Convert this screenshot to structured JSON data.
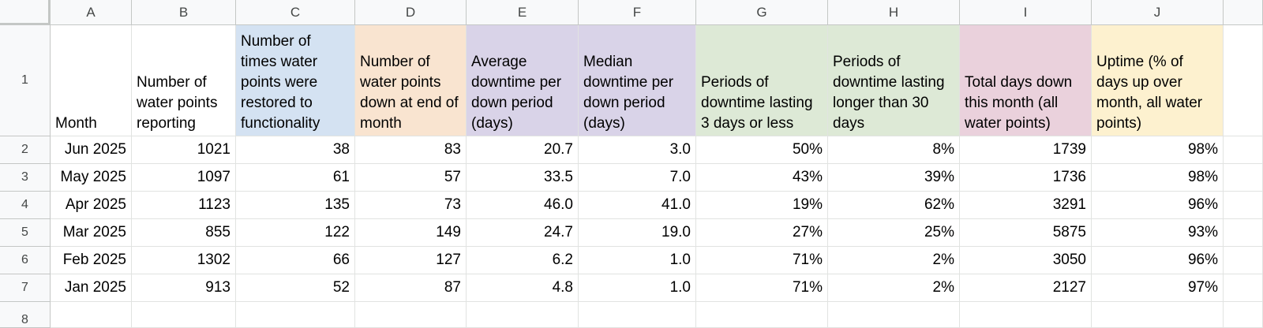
{
  "columns": [
    "A",
    "B",
    "C",
    "D",
    "E",
    "F",
    "G",
    "H",
    "I",
    "J"
  ],
  "header_row_number": "1",
  "headers": [
    "Month",
    "Number of water points reporting",
    "Number of times water points were restored to functionality",
    "Number of water points down at end of month",
    "Average downtime per down period (days)",
    "Median downtime per down period (days)",
    "Periods of downtime lasting 3 days or less",
    "Periods of downtime lasting longer than 30 days",
    "Total days down this month (all water points)",
    "Uptime (% of days up over month, all water points)"
  ],
  "rows": [
    {
      "num": "2",
      "cells": [
        "Jun 2025",
        "1021",
        "38",
        "83",
        "20.7",
        "3.0",
        "50%",
        "8%",
        "1739",
        "98%"
      ]
    },
    {
      "num": "3",
      "cells": [
        "May 2025",
        "1097",
        "61",
        "57",
        "33.5",
        "7.0",
        "43%",
        "39%",
        "1736",
        "98%"
      ]
    },
    {
      "num": "4",
      "cells": [
        "Apr 2025",
        "1123",
        "135",
        "73",
        "46.0",
        "41.0",
        "19%",
        "62%",
        "3291",
        "96%"
      ]
    },
    {
      "num": "5",
      "cells": [
        "Mar 2025",
        "855",
        "122",
        "149",
        "24.7",
        "19.0",
        "27%",
        "25%",
        "5875",
        "93%"
      ]
    },
    {
      "num": "6",
      "cells": [
        "Feb 2025",
        "1302",
        "66",
        "127",
        "6.2",
        "1.0",
        "71%",
        "2%",
        "3050",
        "96%"
      ]
    },
    {
      "num": "7",
      "cells": [
        "Jan 2025",
        "913",
        "52",
        "87",
        "4.8",
        "1.0",
        "71%",
        "2%",
        "2127",
        "97%"
      ]
    }
  ],
  "next_row_number": "8",
  "colors": {
    "C": "#d4e2f2",
    "D": "#f9e4d0",
    "E": "#d9d3e8",
    "F": "#d9d3e8",
    "G": "#dde9d6",
    "H": "#dde9d6",
    "I": "#ead1dc",
    "J": "#fdf1cf"
  }
}
